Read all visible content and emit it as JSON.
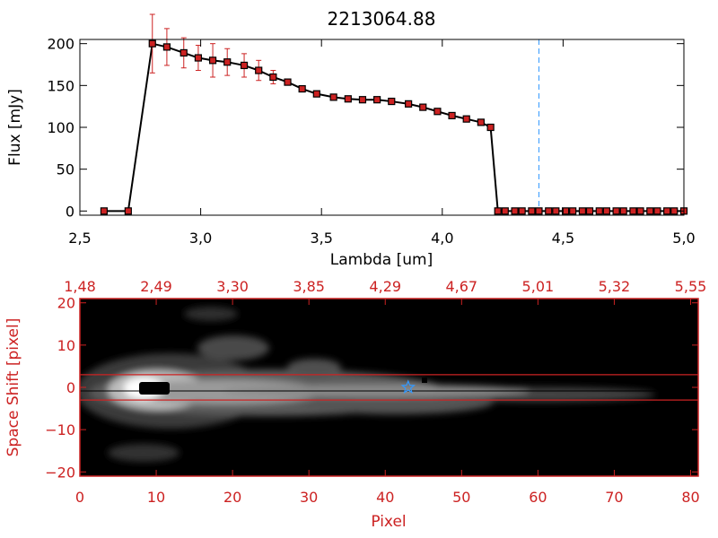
{
  "chart_data": [
    {
      "type": "line",
      "title": "2213064.88",
      "xlabel": "Lambda [um]",
      "ylabel": "Flux [mJy]",
      "xlim": [
        2.5,
        5.0
      ],
      "ylim": [
        -5,
        205
      ],
      "xticks": [
        2.5,
        3.0,
        3.5,
        4.0,
        4.5,
        5.0
      ],
      "xtick_labels": [
        "2,5",
        "3,0",
        "3,5",
        "4,0",
        "4,5",
        "5,0"
      ],
      "yticks": [
        0,
        50,
        100,
        150,
        200
      ],
      "ytick_labels": [
        "0",
        "50",
        "100",
        "150",
        "200"
      ],
      "grid": false,
      "vline_x": 4.4,
      "colors": {
        "line": "#000000",
        "marker": "#cc2222",
        "errorbar": "#cc2222",
        "vline": "#3399ff"
      },
      "series": [
        {
          "x": [
            2.6,
            2.7,
            2.8,
            2.86,
            2.93,
            2.99,
            3.05,
            3.11,
            3.18,
            3.24,
            3.3,
            3.36,
            3.42,
            3.48,
            3.55,
            3.61,
            3.67,
            3.73,
            3.79,
            3.86,
            3.92,
            3.98,
            4.04,
            4.1,
            4.16,
            4.2,
            4.23,
            4.26,
            4.3,
            4.33,
            4.37,
            4.4,
            4.44,
            4.47,
            4.51,
            4.54,
            4.58,
            4.61,
            4.65,
            4.68,
            4.72,
            4.75,
            4.79,
            4.82,
            4.86,
            4.89,
            4.93,
            4.96,
            5.0
          ],
          "y": [
            0,
            0,
            200,
            196,
            189,
            183,
            180,
            178,
            174,
            168,
            160,
            154,
            146,
            140,
            136,
            134,
            133,
            133,
            131,
            128,
            124,
            119,
            114,
            110,
            106,
            100,
            0,
            0,
            0,
            0,
            0,
            0,
            0,
            0,
            0,
            0,
            0,
            0,
            0,
            0,
            0,
            0,
            0,
            0,
            0,
            0,
            0,
            0,
            0
          ],
          "yerr": [
            0,
            0,
            35,
            22,
            18,
            15,
            20,
            16,
            14,
            12,
            8,
            0,
            0,
            0,
            0,
            0,
            0,
            0,
            0,
            0,
            0,
            0,
            0,
            0,
            0,
            0,
            0,
            0,
            0,
            0,
            0,
            0,
            0,
            0,
            0,
            0,
            0,
            0,
            0,
            0,
            0,
            0,
            0,
            0,
            0,
            0,
            0,
            0,
            0
          ]
        }
      ]
    },
    {
      "type": "heatmap",
      "xlabel": "Pixel",
      "ylabel": "Space Shift [pixel]",
      "xlim": [
        0,
        81
      ],
      "ylim": [
        -21,
        21
      ],
      "xticks": [
        0,
        10,
        20,
        30,
        40,
        50,
        60,
        70,
        80
      ],
      "xtick_labels": [
        "0",
        "10",
        "20",
        "30",
        "40",
        "50",
        "60",
        "70",
        "80"
      ],
      "yticks": [
        -20,
        -10,
        0,
        10,
        20
      ],
      "ytick_labels": [
        "−20",
        "−10",
        "0",
        "10",
        "20"
      ],
      "top_ticks": [
        0,
        10,
        20,
        30,
        40,
        50,
        60,
        70,
        80
      ],
      "top_tick_labels": [
        "1,48",
        "2,49",
        "3,30",
        "3,85",
        "4,29",
        "4,67",
        "5,01",
        "5,32",
        "5,55"
      ],
      "hlines_y": [
        -3,
        3
      ],
      "star_x": 43,
      "colors": {
        "axis": "#cc2222",
        "star": "#3399ff",
        "hline": "#cc2222"
      }
    }
  ]
}
